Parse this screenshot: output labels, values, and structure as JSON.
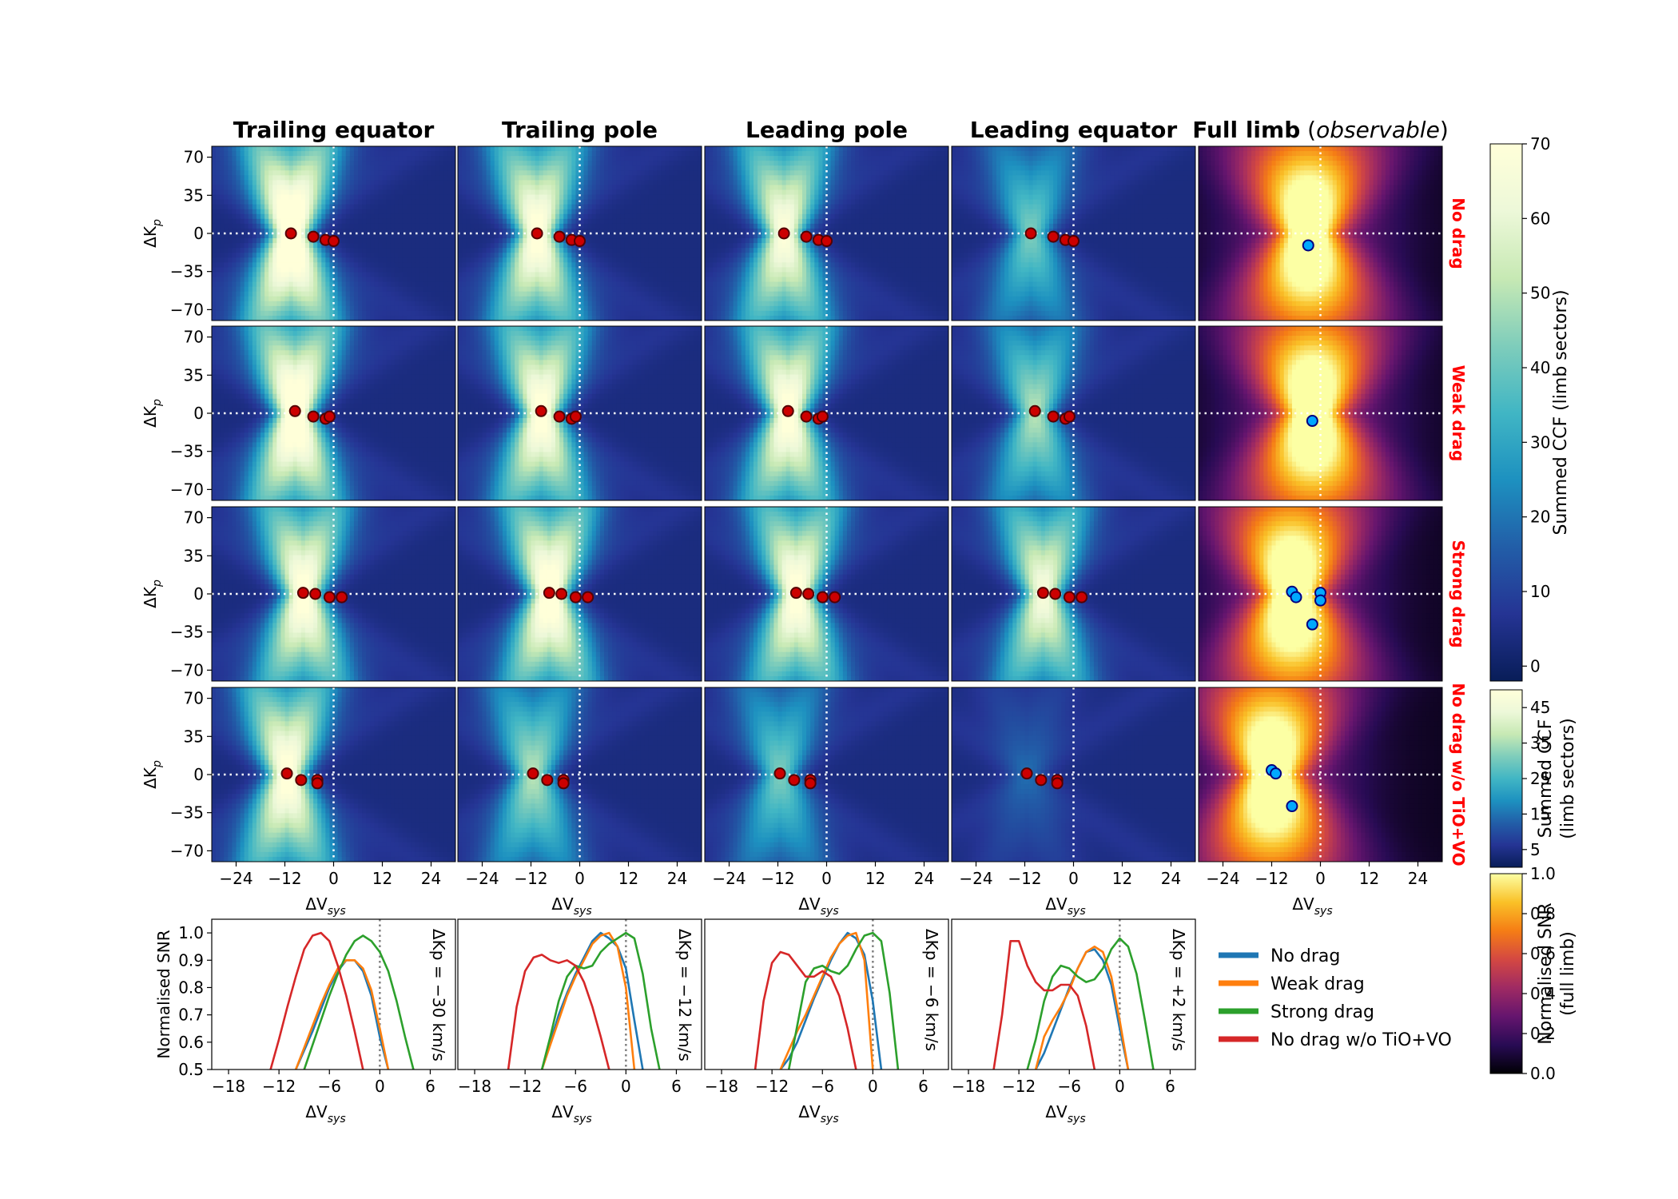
{
  "figure": {
    "column_titles": [
      {
        "text": "Trailing equator"
      },
      {
        "text": "Trailing pole"
      },
      {
        "text": "Leading pole"
      },
      {
        "text": "Leading equator"
      },
      {
        "text": "Full limb",
        "italic_suffix": "observable"
      }
    ],
    "row_labels": [
      "No drag",
      "Weak drag",
      "Strong drag",
      "No drag w/o TiO+VO"
    ],
    "heatmap_ylabel": "ΔK",
    "heatmap_ylabel_sub": "p",
    "xlabel": "ΔV",
    "xlabel_sub": "sys",
    "heatmap_yticks": [
      "70",
      "35",
      "0",
      "−35",
      "−70"
    ],
    "heatmap_xticks": [
      "−24",
      "−12",
      "0",
      "12",
      "24"
    ],
    "snr_ylabel": "Normalised SNR",
    "snr_yticks": [
      "1.0",
      "0.9",
      "0.8",
      "0.7",
      "0.6",
      "0.5"
    ],
    "snr_xticks": [
      "−18",
      "−12",
      "−6",
      "0",
      "6"
    ],
    "snr_panel_labels": [
      "ΔKp = −30 km/s",
      "ΔKp = −12 km/s",
      "ΔKp = −6 km/s",
      "ΔKp = +2 km/s"
    ],
    "colorbars": [
      {
        "label": "Summed CCF (limb sectors)",
        "ticks": [
          "70",
          "60",
          "50",
          "40",
          "30",
          "20",
          "10",
          "0"
        ],
        "colormap": "YlGnBu"
      },
      {
        "label_line1": "Summed CCF",
        "label_line2": "(limb sectors)",
        "ticks": [
          "45",
          "35",
          "25",
          "15",
          "5"
        ],
        "colormap": "YlGnBu"
      },
      {
        "label_line1": "Normalised SNR",
        "label_line2": "(full limb)",
        "ticks": [
          "1.0",
          "0.8",
          "0.6",
          "0.4",
          "0.2",
          "0.0"
        ],
        "colormap": "inferno"
      }
    ],
    "legend": [
      {
        "label": "No drag",
        "color": "#1f77b4"
      },
      {
        "label": "Weak drag",
        "color": "#ff7f0e"
      },
      {
        "label": "Strong drag",
        "color": "#2ca02c"
      },
      {
        "label": "No drag w/o TiO+VO",
        "color": "#d62728"
      }
    ],
    "row_label_color": "#ff0000"
  },
  "chart_data": [
    {
      "type": "heatmap",
      "title": "Trailing equator / Trailing pole / Leading pole / Leading equator / Full limb (observable)",
      "xlabel": "ΔVsys",
      "ylabel": "ΔKp",
      "xlim": [
        -30,
        30
      ],
      "ylim": [
        -80,
        80
      ],
      "peaks_limb_sectors": [
        [
          [
            -10.5,
            0
          ],
          [
            -5,
            -3
          ],
          [
            -2,
            -6
          ],
          [
            0,
            -7
          ]
        ],
        [
          [
            -9.5,
            2
          ],
          [
            -5,
            -3
          ],
          [
            -2,
            -5
          ],
          [
            -1,
            -3
          ]
        ],
        [
          [
            -7.5,
            1
          ],
          [
            -4.5,
            0
          ],
          [
            -1,
            -3
          ],
          [
            2,
            -3
          ]
        ],
        [
          [
            -11.5,
            1
          ],
          [
            -8,
            -5
          ],
          [
            -4,
            -5
          ],
          [
            -4,
            -8
          ]
        ]
      ],
      "peaks_full_limb": [
        [
          [
            -3,
            -11
          ]
        ],
        [
          [
            -2,
            -7
          ]
        ],
        [
          [
            -7,
            2
          ],
          [
            -6,
            -3
          ],
          [
            0,
            1
          ],
          [
            0,
            -6
          ],
          [
            -2,
            -28
          ]
        ],
        [
          [
            -12,
            4
          ],
          [
            -11,
            1
          ],
          [
            -7,
            -29
          ]
        ]
      ],
      "peak_strength": [
        [
          1.0,
          0.85,
          0.8,
          0.45
        ],
        [
          0.95,
          0.85,
          0.85,
          0.55
        ],
        [
          0.85,
          0.9,
          0.85,
          0.75
        ],
        [
          0.85,
          0.55,
          0.45,
          0.15
        ]
      ]
    },
    {
      "type": "line",
      "title": "ΔKp = −30 km/s",
      "xlabel": "ΔVsys",
      "ylabel": "Normalised SNR",
      "xlim": [
        -20,
        9
      ],
      "ylim": [
        0.5,
        1.05
      ],
      "series": [
        {
          "name": "No drag",
          "x": [
            -10,
            -9,
            -8,
            -7,
            -6,
            -5,
            -4,
            -3,
            -2,
            -1,
            0,
            1
          ],
          "y": [
            0.5,
            0.57,
            0.64,
            0.72,
            0.8,
            0.86,
            0.9,
            0.9,
            0.86,
            0.77,
            0.62,
            0.5
          ]
        },
        {
          "name": "Weak drag",
          "x": [
            -10,
            -9,
            -8,
            -7,
            -6,
            -5,
            -4,
            -3,
            -2,
            -1,
            0,
            1
          ],
          "y": [
            0.5,
            0.58,
            0.66,
            0.74,
            0.81,
            0.87,
            0.9,
            0.9,
            0.87,
            0.79,
            0.65,
            0.5
          ]
        },
        {
          "name": "Strong drag",
          "x": [
            -9,
            -8,
            -7,
            -6,
            -5,
            -4,
            -3,
            -2,
            -1,
            0,
            1,
            2,
            3,
            4
          ],
          "y": [
            0.5,
            0.59,
            0.68,
            0.77,
            0.85,
            0.92,
            0.97,
            0.99,
            0.97,
            0.93,
            0.86,
            0.75,
            0.62,
            0.5
          ]
        },
        {
          "name": "No drag w/o TiO+VO",
          "x": [
            -13,
            -12,
            -11,
            -10,
            -9,
            -8,
            -7,
            -6,
            -5,
            -4,
            -3,
            -2
          ],
          "y": [
            0.5,
            0.61,
            0.73,
            0.84,
            0.94,
            0.99,
            1.0,
            0.97,
            0.88,
            0.77,
            0.64,
            0.5
          ]
        }
      ]
    },
    {
      "type": "line",
      "title": "ΔKp = −12 km/s",
      "xlabel": "ΔVsys",
      "ylabel": "Normalised SNR",
      "xlim": [
        -20,
        9
      ],
      "ylim": [
        0.5,
        1.05
      ],
      "series": [
        {
          "name": "No drag",
          "x": [
            -10,
            -9,
            -8,
            -7,
            -6,
            -5,
            -4,
            -3,
            -2,
            -1,
            0,
            1,
            2
          ],
          "y": [
            0.5,
            0.6,
            0.7,
            0.78,
            0.85,
            0.91,
            0.97,
            1.0,
            0.98,
            0.95,
            0.87,
            0.68,
            0.5
          ]
        },
        {
          "name": "Weak drag",
          "x": [
            -10,
            -9,
            -8,
            -7,
            -6,
            -5,
            -4,
            -3,
            -2,
            -1,
            0,
            1
          ],
          "y": [
            0.5,
            0.59,
            0.68,
            0.77,
            0.84,
            0.9,
            0.96,
            0.99,
            1.0,
            0.95,
            0.8,
            0.5
          ]
        },
        {
          "name": "Strong drag",
          "x": [
            -10,
            -9,
            -8,
            -7,
            -6,
            -5,
            -4,
            -3,
            -2,
            -1,
            0,
            1,
            2,
            3,
            4
          ],
          "y": [
            0.5,
            0.62,
            0.75,
            0.84,
            0.88,
            0.87,
            0.88,
            0.93,
            0.96,
            0.98,
            1.0,
            0.98,
            0.85,
            0.65,
            0.5
          ]
        },
        {
          "name": "No drag w/o TiO+VO",
          "x": [
            -14,
            -13,
            -12,
            -11,
            -10,
            -9,
            -8,
            -7,
            -6,
            -5,
            -4,
            -3,
            -2
          ],
          "y": [
            0.5,
            0.73,
            0.86,
            0.91,
            0.92,
            0.9,
            0.89,
            0.9,
            0.88,
            0.82,
            0.73,
            0.62,
            0.5
          ]
        }
      ]
    },
    {
      "type": "line",
      "title": "ΔKp = −6 km/s",
      "xlabel": "ΔVsys",
      "ylabel": "Normalised SNR",
      "xlim": [
        -20,
        9
      ],
      "ylim": [
        0.5,
        1.05
      ],
      "series": [
        {
          "name": "No drag",
          "x": [
            -11,
            -10,
            -9,
            -8,
            -7,
            -6,
            -5,
            -4,
            -3,
            -2,
            -1,
            0,
            1
          ],
          "y": [
            0.5,
            0.54,
            0.6,
            0.68,
            0.76,
            0.83,
            0.9,
            0.96,
            1.0,
            0.98,
            0.92,
            0.75,
            0.5
          ]
        },
        {
          "name": "Weak drag",
          "x": [
            -11,
            -10,
            -9,
            -8,
            -7,
            -6,
            -5,
            -4,
            -3,
            -2,
            -1,
            0
          ],
          "y": [
            0.5,
            0.57,
            0.64,
            0.7,
            0.77,
            0.84,
            0.91,
            0.96,
            0.99,
            1.0,
            0.9,
            0.5
          ]
        },
        {
          "name": "Strong drag",
          "x": [
            -10,
            -9,
            -8,
            -7,
            -6,
            -5,
            -4,
            -3,
            -2,
            -1,
            0,
            1,
            2,
            3
          ],
          "y": [
            0.5,
            0.66,
            0.82,
            0.87,
            0.88,
            0.86,
            0.85,
            0.88,
            0.94,
            0.99,
            1.0,
            0.97,
            0.78,
            0.5
          ]
        },
        {
          "name": "No drag w/o TiO+VO",
          "x": [
            -14,
            -13,
            -12,
            -11,
            -10,
            -9,
            -8,
            -7,
            -6,
            -5,
            -4,
            -3,
            -2
          ],
          "y": [
            0.5,
            0.75,
            0.89,
            0.93,
            0.92,
            0.88,
            0.84,
            0.84,
            0.86,
            0.84,
            0.77,
            0.65,
            0.5
          ]
        }
      ]
    },
    {
      "type": "line",
      "title": "ΔKp = +2 km/s",
      "xlabel": "ΔVsys",
      "ylabel": "Normalised SNR",
      "xlim": [
        -20,
        9
      ],
      "ylim": [
        0.5,
        1.05
      ],
      "series": [
        {
          "name": "No drag",
          "x": [
            -10,
            -9,
            -8,
            -7,
            -6,
            -5,
            -4,
            -3,
            -2,
            -1,
            0,
            1
          ],
          "y": [
            0.5,
            0.56,
            0.64,
            0.72,
            0.8,
            0.87,
            0.93,
            0.94,
            0.9,
            0.81,
            0.65,
            0.5
          ]
        },
        {
          "name": "Weak drag",
          "x": [
            -10,
            -9,
            -8,
            -7,
            -6,
            -5,
            -4,
            -3,
            -2,
            -1,
            0,
            1
          ],
          "y": [
            0.5,
            0.62,
            0.68,
            0.73,
            0.79,
            0.87,
            0.93,
            0.95,
            0.93,
            0.84,
            0.68,
            0.5
          ]
        },
        {
          "name": "Strong drag",
          "x": [
            -11,
            -10,
            -9,
            -8,
            -7,
            -6,
            -5,
            -4,
            -3,
            -2,
            -1,
            0,
            1,
            2,
            3,
            4
          ],
          "y": [
            0.5,
            0.61,
            0.75,
            0.84,
            0.88,
            0.87,
            0.84,
            0.82,
            0.83,
            0.87,
            0.94,
            0.98,
            0.95,
            0.85,
            0.68,
            0.5
          ]
        },
        {
          "name": "No drag w/o TiO+VO",
          "x": [
            -15,
            -14,
            -13,
            -12,
            -11,
            -10,
            -9,
            -8,
            -7,
            -6,
            -5,
            -4,
            -3
          ],
          "y": [
            0.5,
            0.7,
            0.97,
            0.97,
            0.88,
            0.82,
            0.79,
            0.79,
            0.81,
            0.81,
            0.77,
            0.66,
            0.5
          ]
        }
      ]
    }
  ]
}
